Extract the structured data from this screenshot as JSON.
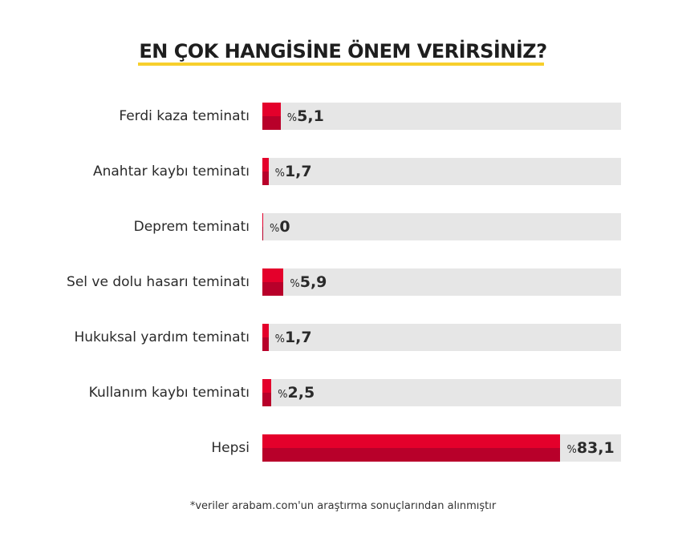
{
  "chart_data": {
    "type": "bar",
    "orientation": "horizontal",
    "title": "EN ÇOK HANGİSİNE ÖNEM VERİRSİNİZ?",
    "categories": [
      "Ferdi kaza teminatı",
      "Anahtar kaybı teminatı",
      "Deprem teminatı",
      "Sel ve dolu hasarı teminatı",
      "Hukuksal yardım teminatı",
      "Kullanım kaybı teminatı",
      "Hepsi"
    ],
    "values": [
      5.1,
      1.7,
      0,
      5.9,
      1.7,
      2.5,
      83.1
    ],
    "value_labels": [
      "5,1",
      "1,7",
      "0",
      "5,9",
      "1,7",
      "2,5",
      "83,1"
    ],
    "value_prefix": "%",
    "xlim": [
      0,
      100
    ],
    "unit": "percent",
    "colors": {
      "bar_top": "#e4002b",
      "bar_bottom": "#b8002a",
      "track": "#e6e6e6",
      "underline": "#f7cf2c"
    },
    "footnote": "*veriler arabam.com'un araştırma sonuçlarından alınmıştır"
  }
}
